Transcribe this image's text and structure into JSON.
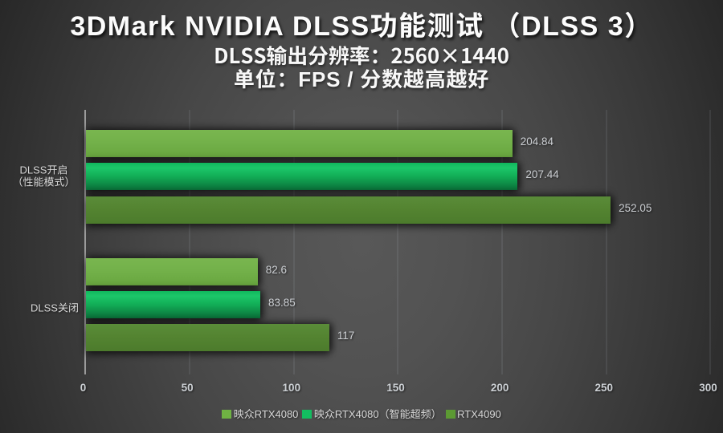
{
  "header": {
    "title": "3DMark NVIDIA DLSS功能测试 （DLSS 3）",
    "subtitle_resolution": "DLSS输出分辨率：2560×1440",
    "subtitle_unit": "单位：FPS / 分数越高越好"
  },
  "chart_data": {
    "type": "bar",
    "orientation": "horizontal",
    "title": "3DMark NVIDIA DLSS功能测试 （DLSS 3）",
    "subtitle": "DLSS输出分辨率：2560×1440",
    "units_note": "单位：FPS / 分数越高越好",
    "categories": [
      "DLSS开启（性能模式）",
      "DLSS关闭"
    ],
    "category_label_lines": [
      [
        "DLSS开启",
        "（性能模式）"
      ],
      [
        "DLSS关闭"
      ]
    ],
    "series": [
      {
        "name": "映众RTX4080",
        "values": [
          204.84,
          82.6
        ],
        "color": "#70b148",
        "gradient": [
          "#79b64f",
          "#73b14a",
          "#68a63f"
        ],
        "legend_color": "#6fb243"
      },
      {
        "name": "映众RTX4080（智能超频）",
        "values": [
          207.44,
          83.85
        ],
        "color": "#12b55c",
        "gradient": [
          "#10b75c",
          "#1cc76a",
          "#12ad56",
          "#0e8a46",
          "#0a6e38"
        ],
        "legend_color": "#12bd60"
      },
      {
        "name": "RTX4090",
        "values": [
          252.05,
          117
        ],
        "color": "#538233",
        "gradient": [
          "#5a8c39",
          "#548431",
          "#4c7b2c"
        ],
        "legend_color": "#5c9a33"
      }
    ],
    "xlim": [
      0,
      300
    ],
    "x_ticks": [
      0,
      50,
      100,
      150,
      200,
      250,
      300
    ],
    "grid": "vertical-gridlines",
    "legend_position": "bottom",
    "value_labels_shown": true
  },
  "style": {
    "background": "dark-gray-radial-gradient",
    "text_color": "#d8d8d8"
  }
}
